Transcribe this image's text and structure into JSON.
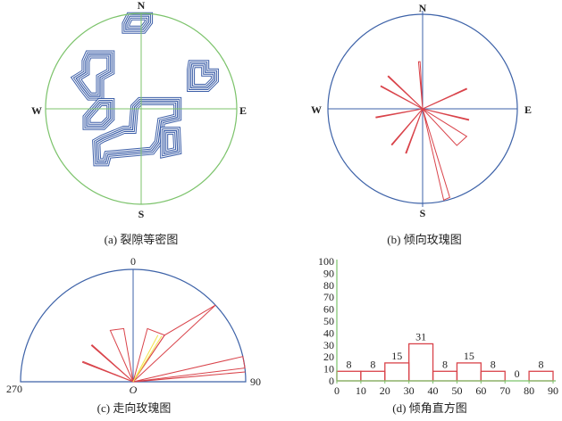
{
  "colors": {
    "petal": "#d9434a",
    "axis_blue": "#3d62a8",
    "axis_green": "#7cc36b",
    "contour": "#3d5fa8",
    "mean": "#f3e34a"
  },
  "chart_data": [
    {
      "type": "contour",
      "caption": "(a) 裂隙等密图",
      "directions": {
        "n": "N",
        "s": "S",
        "w": "W",
        "e": "E"
      },
      "contours": [
        [
          [
            -0.12,
            0.97
          ],
          [
            0.08,
            0.97
          ],
          [
            0.08,
            0.91
          ],
          [
            0.02,
            0.83
          ],
          [
            -0.16,
            0.83
          ],
          [
            -0.16,
            0.89
          ]
        ],
        [
          [
            -0.55,
            0.57
          ],
          [
            -0.32,
            0.57
          ],
          [
            -0.32,
            0.39
          ],
          [
            -0.43,
            0.33
          ],
          [
            -0.43,
            0.13
          ],
          [
            -0.54,
            0.13
          ],
          [
            -0.61,
            0.22
          ],
          [
            -0.68,
            0.32
          ],
          [
            -0.58,
            0.38
          ],
          [
            -0.58,
            0.5
          ]
        ],
        [
          [
            0.53,
            0.47
          ],
          [
            0.67,
            0.47
          ],
          [
            0.67,
            0.38
          ],
          [
            0.77,
            0.38
          ],
          [
            0.77,
            0.3
          ],
          [
            0.69,
            0.22
          ],
          [
            0.52,
            0.22
          ],
          [
            0.52,
            0.41
          ]
        ],
        [
          [
            -0.43,
            0.07
          ],
          [
            -0.32,
            0.07
          ],
          [
            -0.32,
            -0.1
          ],
          [
            -0.4,
            -0.18
          ],
          [
            -0.57,
            -0.18
          ],
          [
            -0.57,
            -0.09
          ]
        ],
        [
          [
            -0.01,
            0.08
          ],
          [
            0.38,
            0.08
          ],
          [
            0.38,
            -0.09
          ],
          [
            0.21,
            -0.13
          ],
          [
            0.18,
            -0.35
          ],
          [
            0.11,
            -0.44
          ],
          [
            -0.35,
            -0.48
          ],
          [
            -0.37,
            -0.56
          ],
          [
            -0.46,
            -0.56
          ],
          [
            -0.47,
            -0.35
          ],
          [
            -0.4,
            -0.31
          ],
          [
            -0.18,
            -0.22
          ],
          [
            -0.09,
            -0.22
          ],
          [
            -0.07,
            0.02
          ]
        ],
        [
          [
            0.24,
            -0.23
          ],
          [
            0.37,
            -0.23
          ],
          [
            0.38,
            -0.44
          ],
          [
            0.24,
            -0.47
          ]
        ]
      ]
    },
    {
      "type": "rose",
      "caption": "(b) 倾向玫瑰图",
      "directions": {
        "n": "N",
        "s": "S",
        "w": "W",
        "e": "E"
      },
      "petals": [
        {
          "a1": 355,
          "v1": 0.5,
          "a2": 357,
          "v2": 0.5
        },
        {
          "a1": 313,
          "v1": 0.5,
          "a2": 314,
          "v2": 0.5
        },
        {
          "a1": 298,
          "v1": 0.5,
          "a2": 299,
          "v2": 0.5
        },
        {
          "a1": 65,
          "v1": 0.51,
          "a2": 66,
          "v2": 0.51
        },
        {
          "a1": 259,
          "v1": 0.5,
          "a2": 260,
          "v2": 0.5
        },
        {
          "a1": 103,
          "v1": 0.5,
          "a2": 104,
          "v2": 0.5
        },
        {
          "a1": 122,
          "v1": 0.55,
          "a2": 137,
          "v2": 0.53
        },
        {
          "a1": 220,
          "v1": 0.5,
          "a2": 221,
          "v2": 0.5
        },
        {
          "a1": 200,
          "v1": 0.5,
          "a2": 201,
          "v2": 0.5
        },
        {
          "a1": 163,
          "v1": 0.98,
          "a2": 167,
          "v2": 0.99
        }
      ]
    },
    {
      "type": "rose",
      "caption": "(c) 走向玫瑰图",
      "labels": {
        "top": "0",
        "left": "270",
        "right": "90",
        "origin": "O"
      },
      "petals": [
        {
          "a1": 336,
          "v1": 0.5,
          "a2": 350,
          "v2": 0.48
        },
        {
          "a1": 15,
          "v1": 0.49,
          "a2": 34,
          "v2": 0.5
        },
        {
          "a1": 34,
          "v1": 0.5,
          "a2": 47,
          "v2": 1.0
        },
        {
          "a1": 311,
          "v1": 0.49,
          "a2": 312,
          "v2": 0.49
        },
        {
          "a1": 291,
          "v1": 0.48,
          "a2": 292,
          "v2": 0.48
        },
        {
          "a1": 77,
          "v1": 1.0,
          "a2": 83,
          "v2": 1.0
        },
        {
          "a1": 85,
          "v1": 1.0,
          "a2": 86,
          "v2": 0.1
        }
      ],
      "mean_lines": [
        {
          "a": 28,
          "v": 0.47
        },
        {
          "a": 32,
          "v": 0.48
        }
      ]
    },
    {
      "type": "bar",
      "caption": "(d) 倾角直方图",
      "bins": [
        [
          0,
          10
        ],
        [
          10,
          20
        ],
        [
          20,
          30
        ],
        [
          30,
          40
        ],
        [
          40,
          50
        ],
        [
          50,
          60
        ],
        [
          60,
          70
        ],
        [
          70,
          80
        ],
        [
          80,
          90
        ]
      ],
      "values": [
        8,
        8,
        15,
        31,
        8,
        15,
        8,
        0,
        8
      ],
      "data_labels": [
        "8",
        "8",
        "15",
        "31",
        "8",
        "15",
        "8",
        "0",
        "8"
      ],
      "xticks": [
        "0",
        "10",
        "20",
        "30",
        "40",
        "50",
        "60",
        "70",
        "80",
        "90"
      ],
      "yticks": [
        "0",
        "10",
        "20",
        "30",
        "40",
        "50",
        "60",
        "70",
        "80",
        "90",
        "100"
      ],
      "xlim": [
        0,
        90
      ],
      "ylim": [
        0,
        100
      ]
    }
  ]
}
